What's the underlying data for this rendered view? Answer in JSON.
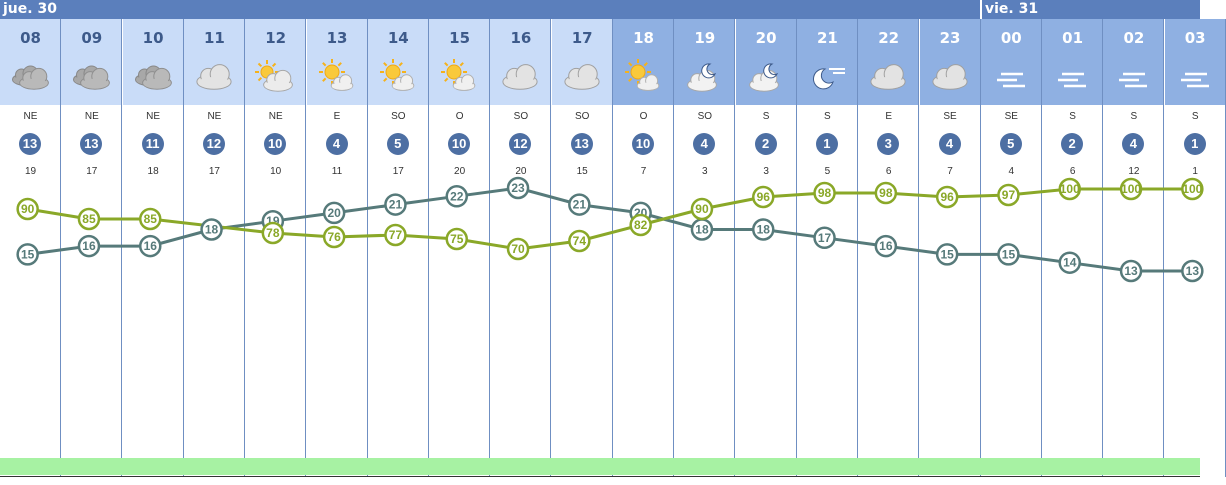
{
  "days": [
    {
      "label": "jue. 30"
    },
    {
      "label": "vie. 31"
    }
  ],
  "colors": {
    "daybar": "#5b7fbc",
    "header_day": "#c9dcf8",
    "header_night": "#8fb0e2",
    "temperature": "#567a7a",
    "humidity": "#8aa828",
    "wind_circle": "#4d6fa3",
    "greenbar": "#a7f2a3"
  },
  "hours": [
    {
      "hour": "08",
      "sky": "cloudy-icon",
      "dir": "NE",
      "speed": "13",
      "gust": "19",
      "night": false
    },
    {
      "hour": "09",
      "sky": "cloudy-icon",
      "dir": "NE",
      "speed": "13",
      "gust": "17",
      "night": false
    },
    {
      "hour": "10",
      "sky": "cloudy-icon",
      "dir": "NE",
      "speed": "11",
      "gust": "18",
      "night": false
    },
    {
      "hour": "11",
      "sky": "cloud-icon",
      "dir": "NE",
      "speed": "12",
      "gust": "17",
      "night": false
    },
    {
      "hour": "12",
      "sky": "partly-sunny-icon",
      "dir": "NE",
      "speed": "10",
      "gust": "10",
      "night": false
    },
    {
      "hour": "13",
      "sky": "sun-cloud-icon",
      "dir": "E",
      "speed": "4",
      "gust": "11",
      "night": false
    },
    {
      "hour": "14",
      "sky": "sun-cloud-icon",
      "dir": "SO",
      "speed": "5",
      "gust": "17",
      "night": false
    },
    {
      "hour": "15",
      "sky": "sun-cloud-icon",
      "dir": "O",
      "speed": "10",
      "gust": "20",
      "night": false
    },
    {
      "hour": "16",
      "sky": "cloud-icon",
      "dir": "SO",
      "speed": "12",
      "gust": "20",
      "night": false
    },
    {
      "hour": "17",
      "sky": "cloud-icon",
      "dir": "SO",
      "speed": "13",
      "gust": "15",
      "night": false
    },
    {
      "hour": "18",
      "sky": "sun-cloud-icon",
      "dir": "O",
      "speed": "10",
      "gust": "7",
      "night": true
    },
    {
      "hour": "19",
      "sky": "moon-cloud-icon",
      "dir": "SO",
      "speed": "4",
      "gust": "3",
      "night": true
    },
    {
      "hour": "20",
      "sky": "moon-cloud-icon",
      "dir": "S",
      "speed": "2",
      "gust": "3",
      "night": true
    },
    {
      "hour": "21",
      "sky": "moon-icon",
      "dir": "S",
      "speed": "1",
      "gust": "5",
      "night": true
    },
    {
      "hour": "22",
      "sky": "cloud-icon",
      "dir": "E",
      "speed": "3",
      "gust": "6",
      "night": true
    },
    {
      "hour": "23",
      "sky": "cloud-icon",
      "dir": "SE",
      "speed": "4",
      "gust": "7",
      "night": true
    },
    {
      "hour": "00",
      "sky": "fog-icon",
      "dir": "SE",
      "speed": "5",
      "gust": "4",
      "night": true
    },
    {
      "hour": "01",
      "sky": "fog-icon",
      "dir": "S",
      "speed": "2",
      "gust": "6",
      "night": true
    },
    {
      "hour": "02",
      "sky": "fog-icon",
      "dir": "S",
      "speed": "4",
      "gust": "12",
      "night": true
    },
    {
      "hour": "03",
      "sky": "fog-icon",
      "dir": "S",
      "speed": "1",
      "gust": "1",
      "night": true
    }
  ],
  "chart_data": {
    "type": "line",
    "x": [
      "08",
      "09",
      "10",
      "11",
      "12",
      "13",
      "14",
      "15",
      "16",
      "17",
      "18",
      "19",
      "20",
      "21",
      "22",
      "23",
      "00",
      "01",
      "02",
      "03"
    ],
    "series": [
      {
        "values": [
          15,
          16,
          16,
          18,
          19,
          20,
          21,
          22,
          23,
          21,
          20,
          18,
          18,
          17,
          16,
          15,
          15,
          14,
          13,
          13
        ]
      },
      {
        "values": [
          90,
          85,
          85,
          null,
          78,
          76,
          77,
          75,
          70,
          74,
          82,
          90,
          96,
          98,
          98,
          96,
          97,
          100,
          100,
          100
        ]
      }
    ],
    "grid": true
  }
}
